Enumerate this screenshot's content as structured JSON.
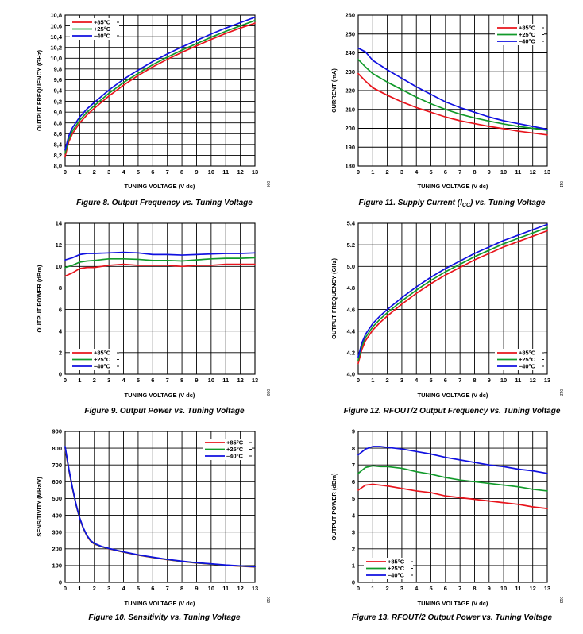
{
  "colors": {
    "hot": "#e8141c",
    "room": "#119a2a",
    "cold": "#1010e0"
  },
  "chart_data": [
    {
      "id": "fig8",
      "type": "line",
      "caption": "Figure 8. Output Frequency vs. Tuning Voltage",
      "figure_id": "006",
      "xlabel": "TUNING VOLTAGE (V dc)",
      "ylabel": "OUTPUT FREQUENCY (GHz)",
      "xlim": [
        0,
        13
      ],
      "ylim": [
        8.0,
        10.8
      ],
      "x_ticks": [
        "0",
        "1",
        "2",
        "3",
        "4",
        "5",
        "6",
        "7",
        "8",
        "9",
        "10",
        "11",
        "12",
        "13"
      ],
      "y_ticks": [
        "8,0",
        "8,2",
        "8,4",
        "8,6",
        "8,8",
        "9,0",
        "9,2",
        "9,4",
        "9,6",
        "9,8",
        "10,0",
        "10,2",
        "10,4",
        "10,6",
        "10,8"
      ],
      "legend_position": "top-left",
      "x": [
        0,
        0.25,
        0.5,
        1,
        1.5,
        2,
        3,
        4,
        5,
        6,
        7,
        8,
        9,
        10,
        11,
        12,
        13
      ],
      "series": [
        {
          "name": "+85°C",
          "color": "hot",
          "values": [
            8.18,
            8.45,
            8.6,
            8.8,
            8.95,
            9.07,
            9.3,
            9.5,
            9.68,
            9.84,
            9.98,
            10.11,
            10.23,
            10.35,
            10.46,
            10.56,
            10.65
          ]
        },
        {
          "name": "+25°C",
          "color": "room",
          "values": [
            8.24,
            8.5,
            8.65,
            8.85,
            9.0,
            9.12,
            9.35,
            9.55,
            9.72,
            9.88,
            10.02,
            10.15,
            10.27,
            10.39,
            10.5,
            10.6,
            10.7
          ]
        },
        {
          "name": "–40°C",
          "color": "cold",
          "values": [
            8.3,
            8.56,
            8.71,
            8.91,
            9.06,
            9.18,
            9.41,
            9.61,
            9.78,
            9.94,
            10.08,
            10.21,
            10.33,
            10.45,
            10.56,
            10.66,
            10.76
          ]
        }
      ]
    },
    {
      "id": "fig11",
      "type": "line",
      "caption_parts": [
        "Figure 11. Supply Current (I",
        "CC",
        ") vs. Tuning Voltage"
      ],
      "figure_id": "011",
      "xlabel": "TUNING VOLTAGE (V dc)",
      "ylabel_parts": [
        "CURRENT (mA)"
      ],
      "xlim": [
        0,
        13
      ],
      "ylim": [
        180,
        260
      ],
      "x_ticks": [
        "0",
        "1",
        "2",
        "3",
        "4",
        "5",
        "6",
        "7",
        "8",
        "9",
        "10",
        "11",
        "12",
        "13"
      ],
      "y_ticks": [
        "180",
        "190",
        "200",
        "210",
        "220",
        "230",
        "240",
        "250",
        "260"
      ],
      "legend_position": "top-right",
      "x": [
        0,
        0.5,
        1,
        2,
        3,
        4,
        5,
        6,
        7,
        8,
        9,
        10,
        11,
        12,
        13
      ],
      "series": [
        {
          "name": "+85°C",
          "color": "hot",
          "values": [
            229,
            225,
            221.5,
            217.5,
            214,
            211,
            208.5,
            206,
            204,
            202.5,
            201,
            199.8,
            198.5,
            197.5,
            196.5
          ]
        },
        {
          "name": "+25°C",
          "color": "room",
          "values": [
            236.5,
            232.5,
            229,
            224.5,
            220.5,
            216.5,
            213,
            210,
            207.5,
            205.5,
            203.8,
            202.3,
            201,
            200,
            199
          ]
        },
        {
          "name": "–40°C",
          "color": "cold",
          "values": [
            242.5,
            240.5,
            236,
            231,
            226.5,
            222,
            218,
            214,
            211,
            208.5,
            206,
            204,
            202.5,
            201,
            199.5
          ]
        }
      ]
    },
    {
      "id": "fig9",
      "type": "line",
      "caption": "Figure 9. Output Power vs. Tuning Voltage",
      "figure_id": "009",
      "xlabel": "TUNING VOLTAGE (V dc)",
      "ylabel": "OUTPUT POWER (dBm)",
      "xlim": [
        0,
        13
      ],
      "ylim": [
        0,
        14
      ],
      "x_ticks": [
        "0",
        "1",
        "2",
        "3",
        "4",
        "5",
        "6",
        "7",
        "8",
        "9",
        "10",
        "11",
        "12",
        "13"
      ],
      "y_ticks": [
        "0",
        "2",
        "4",
        "6",
        "8",
        "10",
        "12",
        "14"
      ],
      "legend_position": "bottom-left",
      "x": [
        0,
        0.5,
        1,
        1.5,
        2,
        3,
        4,
        5,
        6,
        7,
        8,
        9,
        10,
        11,
        12,
        13
      ],
      "series": [
        {
          "name": "+85°C",
          "color": "hot",
          "values": [
            9.1,
            9.4,
            9.8,
            9.9,
            9.9,
            10.1,
            10.2,
            10.1,
            10.1,
            10.1,
            10.0,
            10.1,
            10.1,
            10.2,
            10.2,
            10.2
          ]
        },
        {
          "name": "+25°C",
          "color": "room",
          "values": [
            9.9,
            10.1,
            10.4,
            10.5,
            10.55,
            10.7,
            10.7,
            10.65,
            10.55,
            10.55,
            10.5,
            10.6,
            10.7,
            10.75,
            10.75,
            10.8
          ]
        },
        {
          "name": "–40°C",
          "color": "cold",
          "values": [
            10.6,
            10.8,
            11.1,
            11.2,
            11.2,
            11.25,
            11.3,
            11.25,
            11.1,
            11.1,
            11.05,
            11.1,
            11.15,
            11.2,
            11.2,
            11.25
          ]
        }
      ]
    },
    {
      "id": "fig12",
      "type": "line",
      "caption": "Figure 12. RFOUT/2 Output Frequency vs. Tuning Voltage",
      "figure_id": "012",
      "xlabel": "TUNING VOLTAGE (V dc)",
      "ylabel": "OUTPUT FREQUENCY (GHz)",
      "xlim": [
        0,
        13
      ],
      "ylim": [
        4.0,
        5.4
      ],
      "x_ticks": [
        "0",
        "1",
        "2",
        "3",
        "4",
        "5",
        "6",
        "7",
        "8",
        "9",
        "10",
        "11",
        "12",
        "13"
      ],
      "y_ticks": [
        "4.0",
        "4.2",
        "4.4",
        "4.6",
        "4.8",
        "5.0",
        "5.2",
        "5.4"
      ],
      "legend_position": "bottom-right",
      "x": [
        0,
        0.25,
        0.5,
        1,
        1.5,
        2,
        3,
        4,
        5,
        6,
        7,
        8,
        9,
        10,
        11,
        12,
        13
      ],
      "series": [
        {
          "name": "+85°C",
          "color": "hot",
          "values": [
            4.1,
            4.23,
            4.31,
            4.41,
            4.48,
            4.54,
            4.65,
            4.75,
            4.84,
            4.92,
            4.99,
            5.06,
            5.12,
            5.18,
            5.23,
            5.28,
            5.33
          ]
        },
        {
          "name": "+25°C",
          "color": "room",
          "values": [
            4.13,
            4.26,
            4.34,
            4.44,
            4.51,
            4.57,
            4.68,
            4.78,
            4.87,
            4.95,
            5.02,
            5.09,
            5.15,
            5.21,
            5.26,
            5.31,
            5.36
          ]
        },
        {
          "name": "–40°C",
          "color": "cold",
          "values": [
            4.16,
            4.29,
            4.37,
            4.47,
            4.54,
            4.6,
            4.71,
            4.81,
            4.9,
            4.98,
            5.05,
            5.12,
            5.18,
            5.24,
            5.29,
            5.34,
            5.39
          ]
        }
      ]
    },
    {
      "id": "fig10",
      "type": "line",
      "caption": "Figure 10. Sensitivity vs. Tuning Voltage",
      "figure_id": "010",
      "xlabel": "TUNING VOLTAGE (V dc)",
      "ylabel": "SENSITIVITY (MHz/V)",
      "xlim": [
        0,
        13
      ],
      "ylim": [
        0,
        900
      ],
      "x_ticks": [
        "0",
        "1",
        "2",
        "3",
        "4",
        "5",
        "6",
        "7",
        "8",
        "9",
        "10",
        "11",
        "12",
        "13"
      ],
      "y_ticks": [
        "0",
        "100",
        "200",
        "300",
        "400",
        "500",
        "600",
        "700",
        "800",
        "900"
      ],
      "legend_position": "top-right",
      "x": [
        0,
        0.25,
        0.5,
        0.75,
        1,
        1.25,
        1.5,
        1.75,
        2,
        2.5,
        3,
        4,
        5,
        6,
        7,
        8,
        9,
        10,
        11,
        12,
        13
      ],
      "series": [
        {
          "name": "+85°C",
          "color": "hot",
          "values": [
            800,
            670,
            560,
            460,
            380,
            320,
            275,
            245,
            228,
            212,
            200,
            180,
            162,
            148,
            135,
            124,
            115,
            108,
            101,
            96,
            91
          ]
        },
        {
          "name": "+25°C",
          "color": "room",
          "values": [
            805,
            675,
            563,
            462,
            382,
            322,
            277,
            247,
            230,
            213,
            201,
            181,
            163,
            149,
            136,
            125,
            116,
            109,
            102,
            97,
            92
          ]
        },
        {
          "name": "–40°C",
          "color": "cold",
          "values": [
            810,
            680,
            566,
            465,
            384,
            324,
            279,
            249,
            232,
            214,
            202,
            182,
            164,
            150,
            137,
            126,
            117,
            110,
            103,
            98,
            93
          ]
        }
      ]
    },
    {
      "id": "fig13",
      "type": "line",
      "caption": "Figure 13. RFOUT/2 Output Power vs. Tuning Voltage",
      "figure_id": "013",
      "xlabel": "TUNING VOLTAGE (V dc)",
      "ylabel": "OUTPUT POWER (dBm)",
      "xlim": [
        0,
        13
      ],
      "ylim": [
        0,
        9
      ],
      "x_ticks": [
        "0",
        "1",
        "2",
        "3",
        "4",
        "5",
        "6",
        "7",
        "8",
        "9",
        "10",
        "11",
        "12",
        "13"
      ],
      "y_ticks": [
        "0",
        "1",
        "2",
        "3",
        "4",
        "5",
        "6",
        "7",
        "8",
        "9"
      ],
      "legend_position": "bottom-left",
      "x": [
        0,
        0.5,
        1,
        1.5,
        2,
        3,
        4,
        5,
        6,
        7,
        8,
        9,
        10,
        11,
        12,
        13
      ],
      "series": [
        {
          "name": "+85°C",
          "color": "hot",
          "values": [
            5.5,
            5.8,
            5.85,
            5.8,
            5.75,
            5.6,
            5.45,
            5.35,
            5.15,
            5.05,
            4.95,
            4.85,
            4.75,
            4.65,
            4.5,
            4.4
          ]
        },
        {
          "name": "+25°C",
          "color": "room",
          "values": [
            6.5,
            6.85,
            6.95,
            6.9,
            6.9,
            6.8,
            6.6,
            6.45,
            6.25,
            6.1,
            6.0,
            5.9,
            5.8,
            5.7,
            5.55,
            5.45
          ]
        },
        {
          "name": "–40°C",
          "color": "cold",
          "values": [
            7.6,
            7.95,
            8.1,
            8.1,
            8.05,
            7.95,
            7.8,
            7.65,
            7.45,
            7.3,
            7.15,
            7.0,
            6.9,
            6.75,
            6.65,
            6.5
          ]
        }
      ]
    }
  ]
}
